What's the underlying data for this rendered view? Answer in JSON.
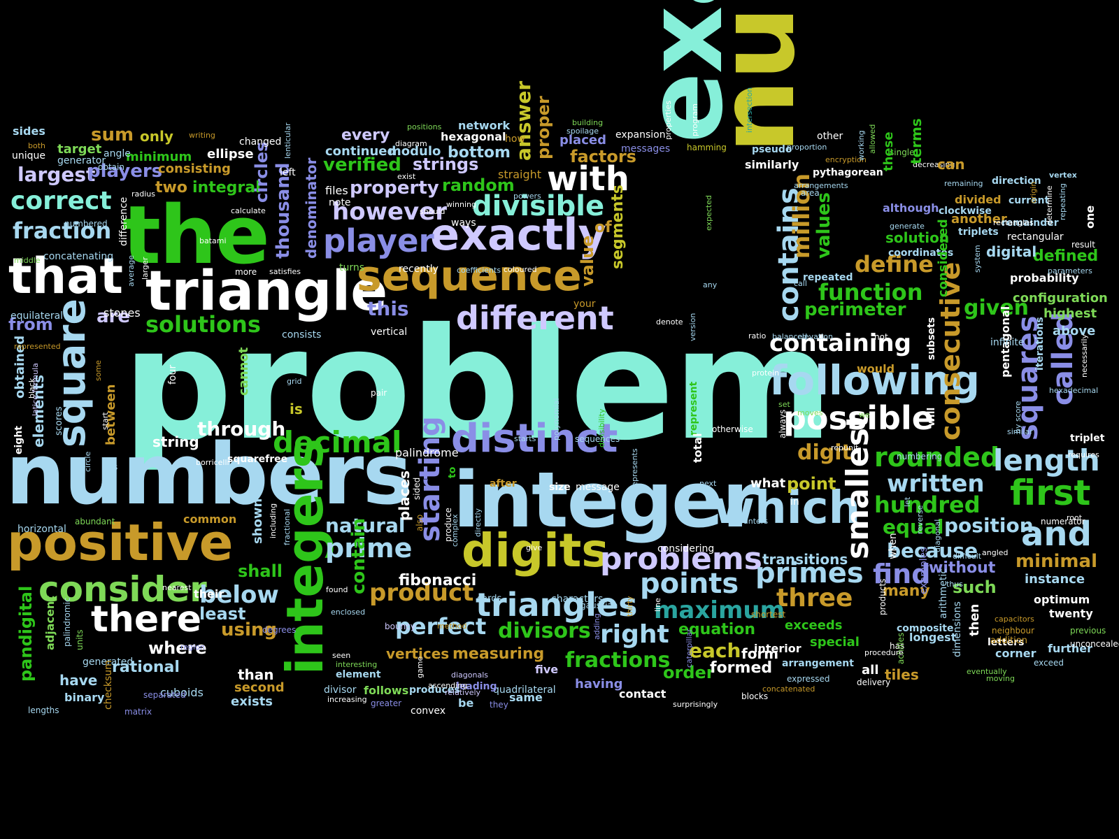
{
  "colors": {
    "background": "#000000",
    "palette": {
      "g": "#2ec51a",
      "lg": "#7ed957",
      "y": "#c8c82a",
      "o": "#c89a2a",
      "b": "#8a8ee6",
      "lb": "#a7d8f0",
      "c": "#86efd9",
      "w": "#ffffff",
      "lv": "#cfc9ff",
      "t": "#2aa5a0",
      "gr": "#3fa82f"
    }
  },
  "words": [
    "problem",
    "number",
    "example",
    "numbers",
    "integer",
    "the",
    "triangle",
    "that",
    "positive",
    "sequence",
    "exactly",
    "digits",
    "integers",
    "distinct",
    "which",
    "following",
    "square",
    "player",
    "different",
    "possible",
    "there",
    "with",
    "triangles",
    "consider",
    "smallest",
    "problems",
    "divisible",
    "containing",
    "and",
    "first",
    "rounded",
    "length",
    "decimal",
    "however",
    "contains",
    "primes",
    "points",
    "written",
    "consecutive",
    "prime",
    "below",
    "product",
    "three",
    "maximum",
    "hundred",
    "perfect",
    "solutions",
    "right",
    "divisors",
    "fractions",
    "function",
    "define",
    "million",
    "squares",
    "called",
    "correct",
    "fraction",
    "largest",
    "players",
    "from",
    "are",
    "this",
    "value",
    "segments",
    "thousand",
    "values",
    "perimeter",
    "given",
    "equal",
    "because",
    "find",
    "position",
    "minimal",
    "where",
    "using",
    "least",
    "rational",
    "fibonacci",
    "measuring",
    "starting",
    "digit",
    "point",
    "each",
    "equation",
    "order",
    "formed",
    "form",
    "through",
    "string",
    "natural",
    "shall",
    "contain",
    "vertices",
    "bottom",
    "verified",
    "property",
    "random",
    "strings",
    "factors",
    "answer",
    "proper",
    "network",
    "hexagonal",
    "placed",
    "every",
    "continued",
    "modulo",
    "sum",
    "sides",
    "only",
    "target",
    "minimum",
    "integral",
    "circles",
    "ellipse",
    "consisting",
    "two",
    "elements",
    "between",
    "pandigital",
    "adjacent",
    "have",
    "binary",
    "than",
    "second",
    "exists",
    "horizontal",
    "common",
    "abundant",
    "cuboids",
    "many",
    "such",
    "without",
    "instance",
    "optimum",
    "twenty",
    "corner",
    "letters",
    "further",
    "tiles",
    "all",
    "special",
    "exceeds",
    "longest",
    "composite",
    "interior",
    "arrangement",
    "delivery",
    "expressed",
    "concatenated",
    "blocks",
    "contact",
    "same",
    "they",
    "be",
    "convex",
    "having",
    "five",
    "quadrilateral",
    "leading",
    "produces",
    "follows",
    "greater",
    "divisor",
    "increasing",
    "element",
    "generated",
    "separated",
    "matrix",
    "checksum",
    "lengths",
    "palindromic",
    "units",
    "region",
    "degrees",
    "bouncy",
    "method",
    "enclosed",
    "found",
    "seen",
    "interesting",
    "game",
    "ascending",
    "diagonals",
    "relatively",
    "cannot",
    "four",
    "grid",
    "pair",
    "palindrome",
    "squarefree",
    "borricelli",
    "eight",
    "obtained",
    "black",
    "latice formula",
    "some",
    "scores",
    "less",
    "start",
    "circle",
    "nearest",
    "their",
    "shown",
    "including",
    "fractional",
    "directly",
    "after",
    "give",
    "considering",
    "message",
    "size",
    "places",
    "sided",
    "to",
    "produce",
    "also",
    "complex",
    "cards",
    "characters",
    "gaussian",
    "thirty",
    "line",
    "adding",
    "caterpillar",
    "surprisingly",
    "shortest",
    "has",
    "products",
    "achilles",
    "procedure",
    "eventually",
    "unconcealed",
    "previous",
    "addition",
    "neighbour",
    "capacitors",
    "moving",
    "exceed",
    "then",
    "dimensions",
    "thus",
    "examples",
    "arithmetic",
    "diagonal",
    "reverse",
    "let",
    "when",
    "difficult",
    "transitions",
    "angled",
    "root",
    "numerator",
    "above",
    "highest",
    "configuration",
    "probability",
    "defined",
    "digital",
    "rectangular",
    "triplets",
    "another",
    "remainder",
    "although",
    "generate",
    "clockwise",
    "coordinates",
    "solution",
    "repeated",
    "call",
    "system",
    "parameters",
    "current",
    "divided",
    "remaining",
    "direction",
    "vertex",
    "single",
    "decreasing",
    "allowed",
    "these",
    "terms",
    "can",
    "encryption",
    "pythagorean",
    "arrangements",
    "area",
    "similarly",
    "pseudo",
    "proportion",
    "other",
    "working",
    "intersection",
    "hamming",
    "messages",
    "expansion",
    "properties",
    "program",
    "building",
    "spoilage",
    "how",
    "straight",
    "diagram",
    "should",
    "positions",
    "exist",
    "files",
    "note",
    "winning",
    "ways",
    "powers",
    "turns",
    "coefficients",
    "coloured",
    "recently",
    "your",
    "vertical",
    "consists",
    "stones",
    "equilateral",
    "represented",
    "average",
    "larger",
    "more",
    "satisfies",
    "batami",
    "middle",
    "concatenating",
    "numbered",
    "radius",
    "difference",
    "calculate",
    "changed",
    "writing",
    "both",
    "unique",
    "angle",
    "obtain",
    "generator",
    "left",
    "lenticular",
    "denominator",
    "of",
    "is",
    "represent",
    "total",
    "version",
    "denote",
    "elevation",
    "balanced",
    "ratio",
    "not",
    "subsets",
    "would",
    "considered",
    "protein",
    "set",
    "always",
    "moves",
    "we",
    "otherwise",
    "repunit",
    "will",
    "numbering",
    "similar",
    "by score",
    "hexadecimal",
    "iterations",
    "pentagonal",
    "infinite",
    "necessarily",
    "triplet",
    "requires",
    "origin",
    "determine",
    "repeating",
    "one",
    "rectangles",
    "result",
    "in",
    "what",
    "next",
    "represents",
    "polynomial",
    "divisibility",
    "sequences",
    "starts",
    "any",
    "expected",
    "counters"
  ]
}
